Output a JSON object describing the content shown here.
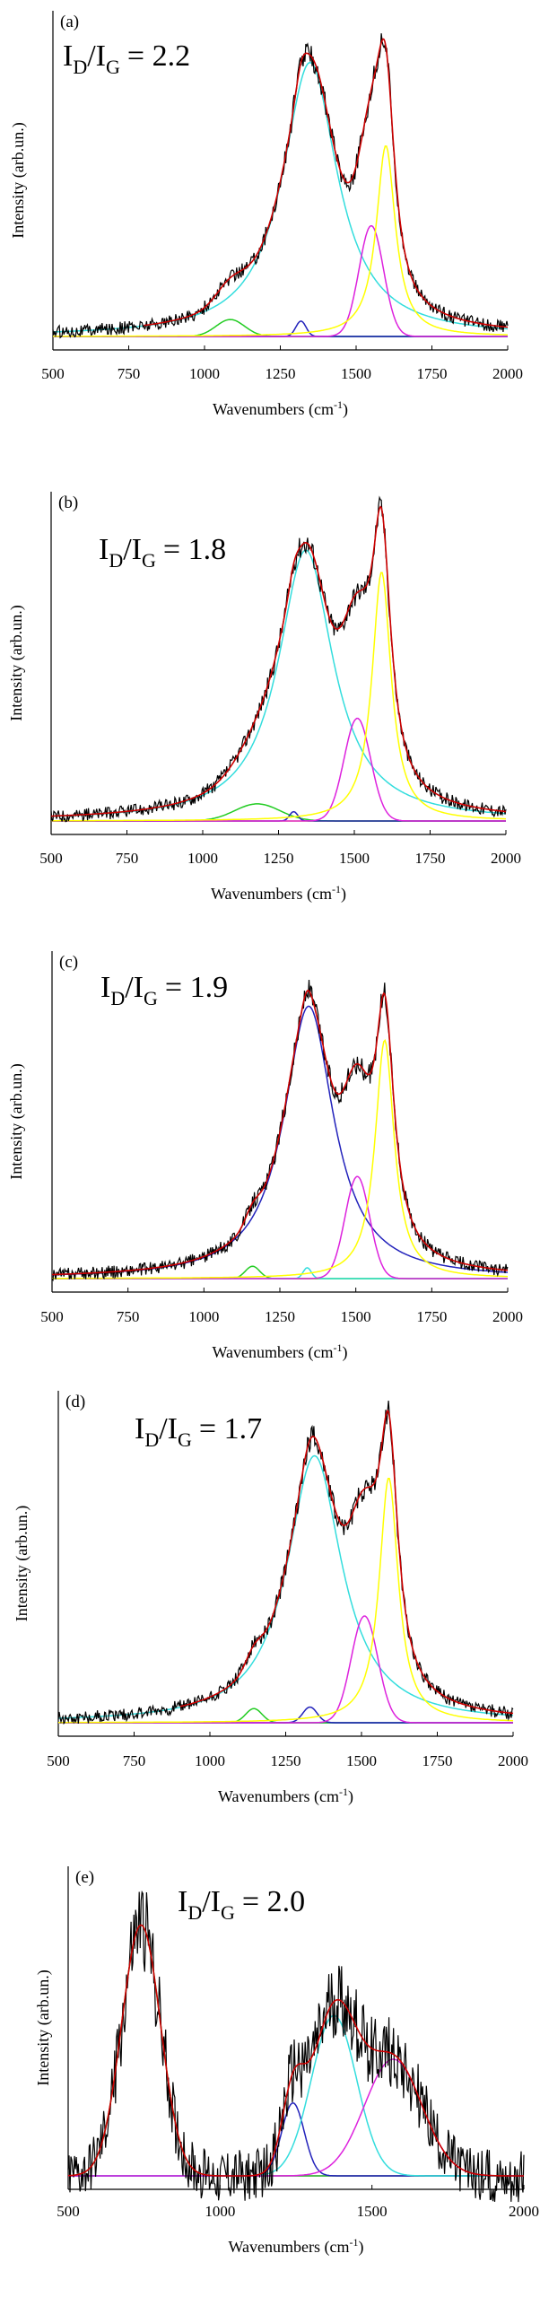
{
  "colors": {
    "axis": "#000000",
    "experimental": "#000000",
    "fit": "#cc0000",
    "D_band": "#33dddd",
    "G_band": "#ffff00",
    "D3_band": "#dd22dd",
    "D4_band": "#22cc22",
    "small_band": "#2222bb",
    "baseline": "#ffff00"
  },
  "ratio_prefix": "I",
  "ratio_sub_d": "D",
  "ratio_slash": "/I",
  "ratio_sub_g": "G",
  "chart_data": [
    {
      "type": "line",
      "panel_label": "(a)",
      "ratio_value": "= 2.2",
      "xlabel": "Wavenumbers (cm",
      "xlabel_sup": "-1",
      "xlabel_end": ")",
      "ylabel": "Intensity (arb.un.)",
      "xlim": [
        500,
        2000
      ],
      "ylim": [
        0,
        1
      ],
      "xticks": [
        "500",
        "750",
        "1000",
        "1250",
        "1500",
        "1750",
        "2000"
      ],
      "grid": false,
      "noise_start": 500,
      "fit_start": 800,
      "fit_end": 2000,
      "bands": [
        {
          "key": "D4_band",
          "center": 1085,
          "height": 0.055,
          "width": 70,
          "shape": "gauss"
        },
        {
          "key": "D_band",
          "center": 1348,
          "height": 0.89,
          "width": 110,
          "shape": "lorentz"
        },
        {
          "key": "small_band",
          "center": 1318,
          "height": 0.05,
          "width": 25,
          "shape": "gauss"
        },
        {
          "key": "D3_band",
          "center": 1550,
          "height": 0.36,
          "width": 60,
          "shape": "gauss"
        },
        {
          "key": "G_band",
          "center": 1598,
          "height": 0.62,
          "width": 38,
          "shape": "lorentz"
        }
      ],
      "baseline_color": "small_band"
    },
    {
      "type": "line",
      "panel_label": "(b)",
      "ratio_value": "= 1.8",
      "xlabel": "Wavenumbers (cm",
      "xlabel_sup": "-1",
      "xlabel_end": ")",
      "ylabel": "Intensity (arb.un.)",
      "xlim": [
        500,
        2000
      ],
      "ylim": [
        0,
        1
      ],
      "xticks": [
        "500",
        "750",
        "1000",
        "1250",
        "1500",
        "1750",
        "2000"
      ],
      "grid": false,
      "noise_start": 500,
      "fit_start": 500,
      "fit_end": 2000,
      "bands": [
        {
          "key": "D4_band",
          "center": 1180,
          "height": 0.055,
          "width": 110,
          "shape": "gauss"
        },
        {
          "key": "D_band",
          "center": 1340,
          "height": 0.87,
          "width": 110,
          "shape": "lorentz"
        },
        {
          "key": "small_band",
          "center": 1300,
          "height": 0.03,
          "width": 20,
          "shape": "gauss"
        },
        {
          "key": "D3_band",
          "center": 1510,
          "height": 0.33,
          "width": 65,
          "shape": "gauss"
        },
        {
          "key": "G_band",
          "center": 1590,
          "height": 0.8,
          "width": 38,
          "shape": "lorentz"
        }
      ],
      "baseline_color": "baseline"
    },
    {
      "type": "line",
      "panel_label": "(c)",
      "ratio_value": "= 1.9",
      "xlabel": "Wavenumbers (cm",
      "xlabel_sup": "-1",
      "xlabel_end": ")",
      "ylabel": "Intensity (arb.un.)",
      "xlim": [
        500,
        2000
      ],
      "ylim": [
        0,
        1
      ],
      "xticks": [
        "500",
        "750",
        "1000",
        "1250",
        "1500",
        "1750",
        "2000"
      ],
      "grid": false,
      "noise_start": 500,
      "fit_start": 500,
      "fit_end": 2000,
      "bands": [
        {
          "key": "D4_band",
          "center": 1160,
          "height": 0.04,
          "width": 35,
          "shape": "gauss"
        },
        {
          "key": "small_band",
          "center": 1345,
          "height": 0.88,
          "width": 100,
          "shape": "lorentz"
        },
        {
          "key": "D_band",
          "center": 1340,
          "height": 0.035,
          "width": 20,
          "shape": "gauss"
        },
        {
          "key": "D3_band",
          "center": 1505,
          "height": 0.33,
          "width": 60,
          "shape": "gauss"
        },
        {
          "key": "G_band",
          "center": 1595,
          "height": 0.77,
          "width": 38,
          "shape": "lorentz"
        }
      ],
      "baseline_color": "baseline"
    },
    {
      "type": "line",
      "panel_label": "(d)",
      "ratio_value": "= 1.7",
      "xlabel": "Wavenumbers (cm",
      "xlabel_sup": "-1",
      "xlabel_end": ")",
      "ylabel": "Intensity (arb.un.)",
      "xlim": [
        500,
        2000
      ],
      "ylim": [
        0,
        1
      ],
      "xticks": [
        "500",
        "750",
        "1000",
        "1250",
        "1500",
        "1750",
        "2000"
      ],
      "grid": false,
      "noise_start": 500,
      "fit_start": 900,
      "fit_end": 2000,
      "bands": [
        {
          "key": "D4_band",
          "center": 1145,
          "height": 0.045,
          "width": 40,
          "shape": "gauss"
        },
        {
          "key": "small_band",
          "center": 1330,
          "height": 0.05,
          "width": 35,
          "shape": "gauss"
        },
        {
          "key": "D_band",
          "center": 1345,
          "height": 0.85,
          "width": 110,
          "shape": "lorentz"
        },
        {
          "key": "D3_band",
          "center": 1510,
          "height": 0.34,
          "width": 65,
          "shape": "gauss"
        },
        {
          "key": "G_band",
          "center": 1590,
          "height": 0.78,
          "width": 38,
          "shape": "lorentz"
        }
      ],
      "baseline_color": "small_band"
    },
    {
      "type": "line",
      "panel_label": "(e)",
      "ratio_value": "= 2.0",
      "xlabel": "Wavenumbers (cm",
      "xlabel_sup": "-1",
      "xlabel_end": ")",
      "ylabel": "Intensity (arb.un.)",
      "xlim": [
        500,
        2000
      ],
      "ylim": [
        0,
        1
      ],
      "xticks": [
        "500",
        "1000",
        "1500",
        "2000"
      ],
      "grid": false,
      "noise_start": 500,
      "fit_start": 500,
      "fit_end": 2000,
      "bands": [
        {
          "key": "D4_band",
          "center": 740,
          "height": 0.86,
          "width": 95,
          "shape": "gauss"
        },
        {
          "key": "small_band",
          "center": 1240,
          "height": 0.25,
          "width": 55,
          "shape": "gauss"
        },
        {
          "key": "D_band",
          "center": 1375,
          "height": 0.55,
          "width": 110,
          "shape": "gauss"
        },
        {
          "key": "D3_band",
          "center": 1570,
          "height": 0.4,
          "width": 140,
          "shape": "gauss"
        }
      ],
      "baseline_color": "D3_band"
    }
  ]
}
